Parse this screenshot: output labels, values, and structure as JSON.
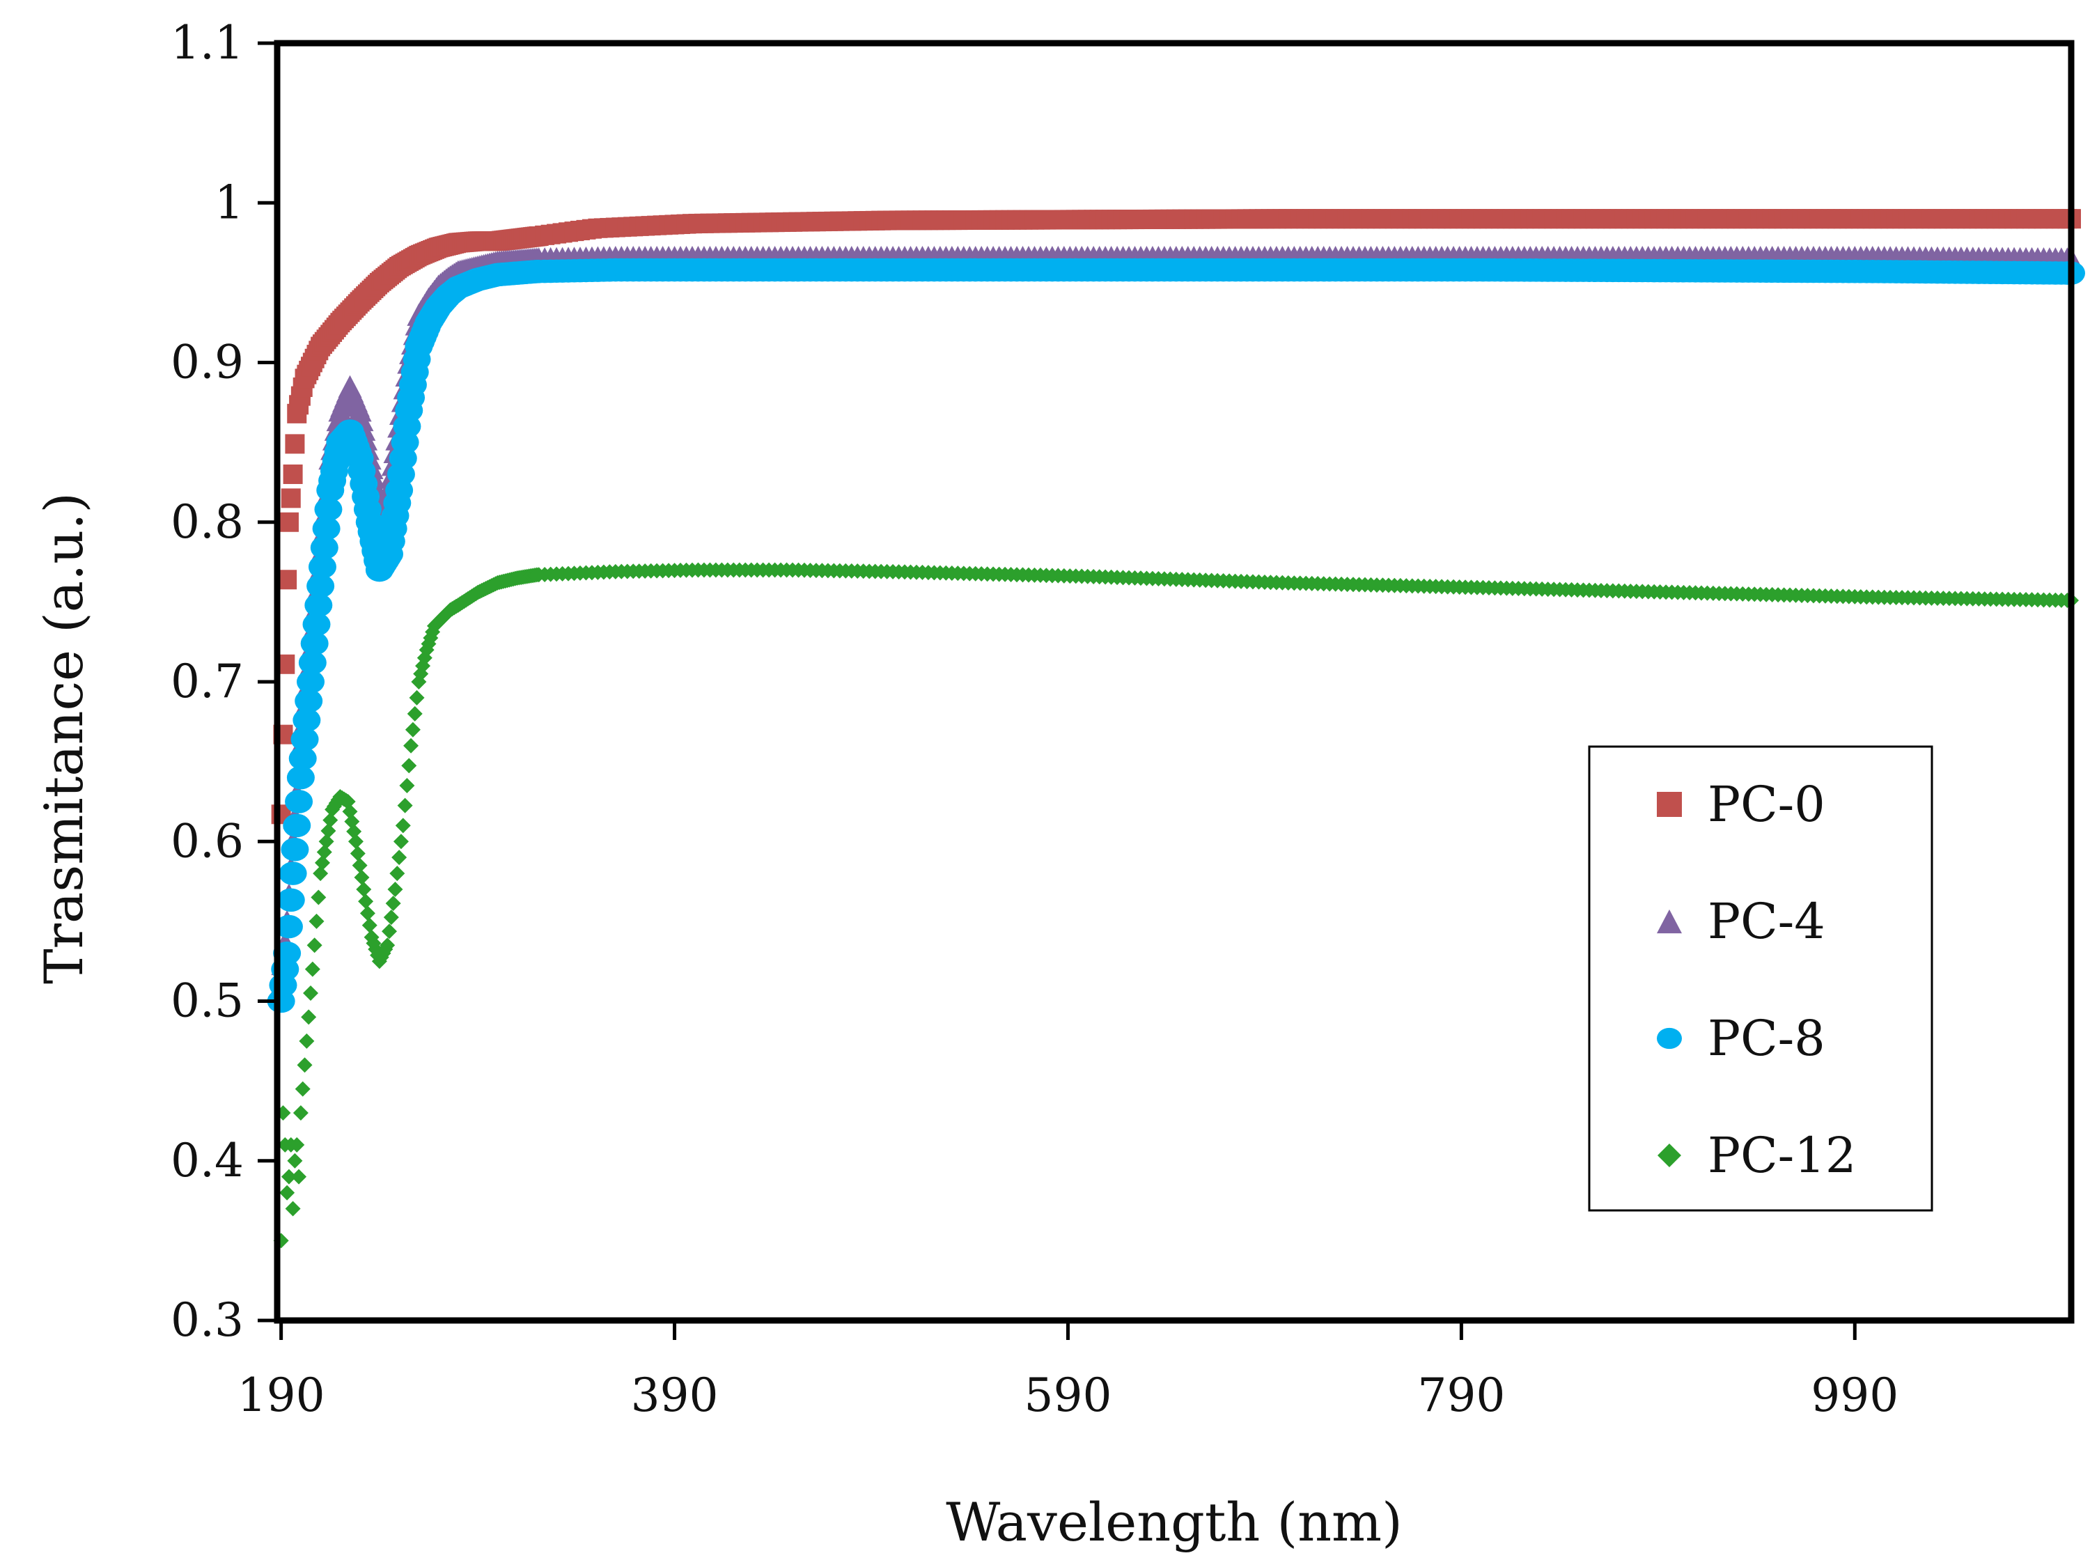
{
  "chart_data": {
    "type": "scatter",
    "title": "",
    "xlabel": "Wavelength (nm)",
    "ylabel": "Trasmitance (a.u.)",
    "xlim": [
      188,
      1100
    ],
    "ylim": [
      0.3,
      1.1
    ],
    "xticks": [
      190,
      390,
      590,
      790,
      990
    ],
    "yticks": [
      0.3,
      0.4,
      0.5,
      0.6,
      0.7,
      0.8,
      0.9,
      1,
      1.1
    ],
    "ytick_labels": [
      "0.3",
      "0.4",
      "0.5",
      "0.6",
      "0.7",
      "0.8",
      "0.9",
      "1",
      "1.1"
    ],
    "legend_position": "right",
    "series": [
      {
        "name": "PC-0",
        "color": "#c0504d",
        "marker": "square",
        "x": [
          190,
          191,
          192,
          193,
          194,
          196,
          198,
          202,
          210,
          220,
          230,
          240,
          250,
          260,
          270,
          280,
          290,
          300,
          320,
          350,
          400,
          500,
          700,
          900,
          1100
        ],
        "y": [
          0.617,
          0.667,
          0.711,
          0.764,
          0.8,
          0.83,
          0.868,
          0.89,
          0.91,
          0.925,
          0.938,
          0.95,
          0.96,
          0.967,
          0.972,
          0.975,
          0.976,
          0.976,
          0.979,
          0.984,
          0.987,
          0.989,
          0.99,
          0.99,
          0.99
        ]
      },
      {
        "name": "PC-4",
        "color": "#8064a2",
        "marker": "triangle",
        "x": [
          190,
          193,
          196,
          200,
          205,
          210,
          215,
          220,
          225,
          230,
          235,
          240,
          245,
          250,
          255,
          260,
          265,
          270,
          275,
          280,
          290,
          300,
          320,
          360,
          400,
          600,
          800,
          1000,
          1100
        ],
        "y": [
          0.51,
          0.55,
          0.6,
          0.66,
          0.72,
          0.78,
          0.84,
          0.87,
          0.885,
          0.87,
          0.84,
          0.81,
          0.82,
          0.86,
          0.9,
          0.93,
          0.94,
          0.948,
          0.953,
          0.957,
          0.96,
          0.963,
          0.965,
          0.966,
          0.966,
          0.966,
          0.966,
          0.966,
          0.965
        ]
      },
      {
        "name": "PC-8",
        "color": "#00b0f0",
        "marker": "circle",
        "x": [
          190,
          193,
          196,
          200,
          205,
          210,
          215,
          220,
          225,
          230,
          235,
          240,
          245,
          250,
          255,
          260,
          265,
          270,
          275,
          280,
          290,
          300,
          320,
          360,
          400,
          600,
          800,
          1000,
          1100
        ],
        "y": [
          0.5,
          0.53,
          0.58,
          0.64,
          0.7,
          0.76,
          0.82,
          0.85,
          0.857,
          0.84,
          0.8,
          0.77,
          0.78,
          0.82,
          0.87,
          0.91,
          0.925,
          0.935,
          0.942,
          0.947,
          0.952,
          0.955,
          0.957,
          0.958,
          0.958,
          0.958,
          0.958,
          0.957,
          0.956
        ]
      },
      {
        "name": "PC-12",
        "color": "#2ca02c",
        "marker": "diamond",
        "x": [
          190,
          191,
          192,
          193,
          194,
          195,
          196,
          197,
          198,
          199,
          200,
          202,
          204,
          206,
          208,
          210,
          213,
          216,
          220,
          224,
          228,
          232,
          236,
          240,
          244,
          248,
          252,
          256,
          260,
          264,
          268,
          272,
          276,
          280,
          285,
          290,
          300,
          310,
          320,
          340,
          360,
          400,
          450,
          500,
          600,
          700,
          800,
          900,
          1000,
          1100
        ],
        "y": [
          0.35,
          0.43,
          0.41,
          0.38,
          0.39,
          0.41,
          0.37,
          0.4,
          0.41,
          0.39,
          0.43,
          0.46,
          0.49,
          0.52,
          0.55,
          0.58,
          0.6,
          0.62,
          0.628,
          0.625,
          0.6,
          0.57,
          0.54,
          0.525,
          0.535,
          0.57,
          0.61,
          0.66,
          0.7,
          0.72,
          0.735,
          0.74,
          0.745,
          0.748,
          0.752,
          0.756,
          0.762,
          0.765,
          0.767,
          0.768,
          0.769,
          0.77,
          0.77,
          0.769,
          0.766,
          0.762,
          0.759,
          0.756,
          0.753,
          0.751
        ]
      }
    ]
  }
}
